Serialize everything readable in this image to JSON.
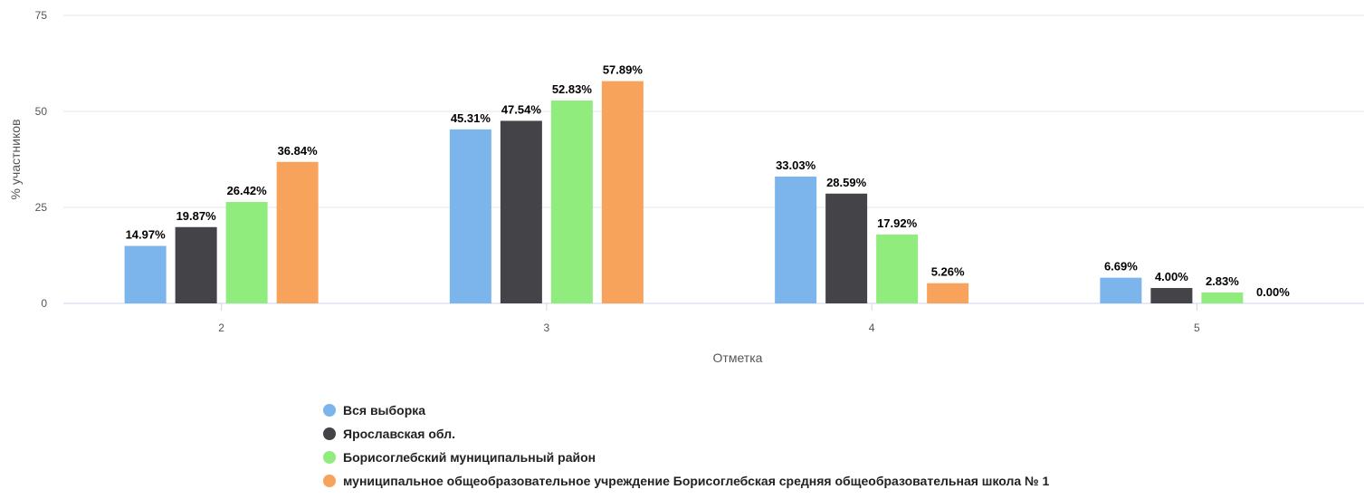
{
  "chart_data": {
    "type": "bar",
    "xlabel": "Отметка",
    "ylabel": "% участников",
    "ylim": [
      0,
      75
    ],
    "yticks": [
      "0",
      "25",
      "50",
      "75"
    ],
    "grid": true,
    "legend_position": "bottom",
    "categories": [
      "2",
      "3",
      "4",
      "5"
    ],
    "series": [
      {
        "name": "Вся выборка",
        "color": "#7cb5ec",
        "values": [
          14.97,
          45.31,
          33.03,
          6.69
        ],
        "labels": [
          "14.97%",
          "45.31%",
          "33.03%",
          "6.69%"
        ]
      },
      {
        "name": "Ярославская обл.",
        "color": "#434348",
        "values": [
          19.87,
          47.54,
          28.59,
          4.0
        ],
        "labels": [
          "19.87%",
          "47.54%",
          "28.59%",
          "4.00%"
        ]
      },
      {
        "name": "Борисоглебский муниципальный район",
        "color": "#90ed7d",
        "values": [
          26.42,
          52.83,
          17.92,
          2.83
        ],
        "labels": [
          "26.42%",
          "52.83%",
          "17.92%",
          "2.83%"
        ]
      },
      {
        "name": "муниципальное общеобразовательное учреждение Борисоглебская средняя общеобразовательная школа № 1",
        "color": "#f7a35c",
        "values": [
          36.84,
          57.89,
          5.26,
          0.0
        ],
        "labels": [
          "36.84%",
          "57.89%",
          "5.26%",
          "0.00%"
        ]
      }
    ]
  }
}
